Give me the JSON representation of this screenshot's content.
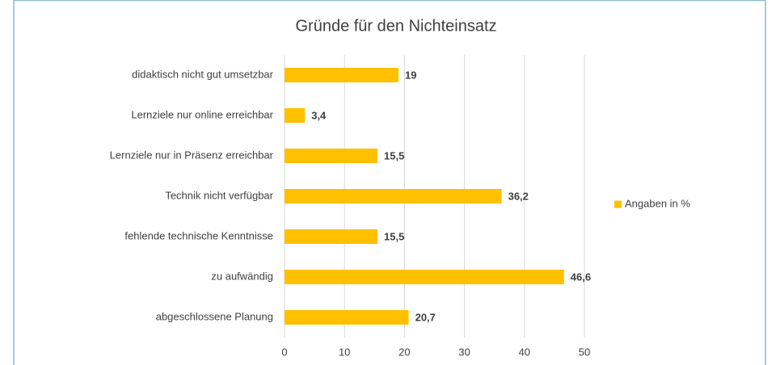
{
  "chart_data": {
    "type": "hbar",
    "title": "Gründe für den Nichteinsatz",
    "categories": [
      "didaktisch nicht gut umsetzbar",
      "Lernziele nur online erreichbar",
      "Lernziele nur in Präsenz erreichbar",
      "Technik nicht verfügbar",
      "fehlende technische Kenntnisse",
      "zu aufwändig",
      "abgeschlossene Planung"
    ],
    "series": [
      {
        "name": "Angaben in %",
        "color": "#ffc000",
        "values": [
          19,
          3.4,
          15.5,
          36.2,
          15.5,
          46.6,
          20.7
        ],
        "value_labels": [
          "19",
          "3,4",
          "15,5",
          "36,2",
          "15,5",
          "46,6",
          "20,7"
        ]
      }
    ],
    "xlim": [
      0,
      50
    ],
    "xticks": [
      0,
      10,
      20,
      30,
      40,
      50
    ],
    "grid": true,
    "legend": "right"
  }
}
